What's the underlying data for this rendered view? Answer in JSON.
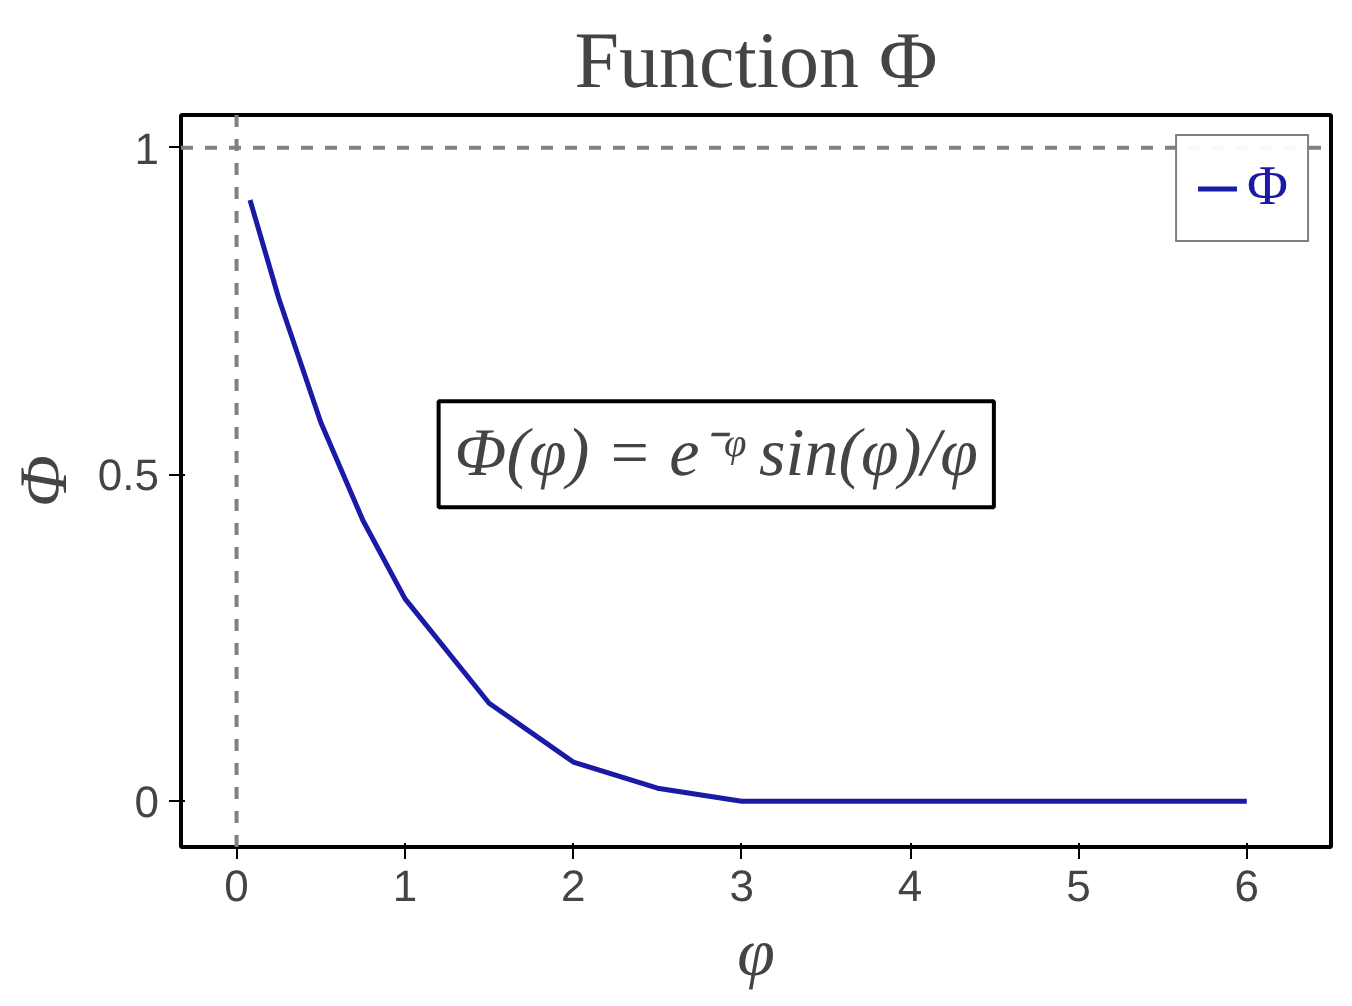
{
  "chart_data": {
    "type": "line",
    "title": "Function Φ",
    "xlabel": "φ",
    "ylabel": "Φ",
    "x": [
      0.08,
      0.25,
      0.5,
      0.75,
      1,
      1.5,
      2,
      2.5,
      3,
      3.5,
      4,
      5,
      6
    ],
    "series": [
      {
        "name": "Φ",
        "color": "#1a1aa6",
        "values": [
          0.92,
          0.77,
          0.58,
          0.43,
          0.31,
          0.15,
          0.06,
          0.02,
          0.0,
          0.0,
          0.0,
          0.0,
          0.0
        ]
      }
    ],
    "xlim": [
      -0.33,
      6.5
    ],
    "ylim": [
      -0.07,
      1.05
    ],
    "xticks": [
      0,
      1,
      2,
      3,
      4,
      5,
      6
    ],
    "yticks": [
      0,
      0.5,
      1
    ],
    "ref_lines": [
      {
        "axis": "x",
        "value": 0,
        "color": "#808080",
        "line_style": "dashed"
      },
      {
        "axis": "y",
        "value": 1,
        "color": "#808080",
        "line_style": "dashed"
      }
    ],
    "annotations": [
      "Φ(φ) = e⁻ᵠ sin(φ)/φ"
    ],
    "legend": "top right",
    "grid": false,
    "marker": "none",
    "line_style": "solid"
  }
}
